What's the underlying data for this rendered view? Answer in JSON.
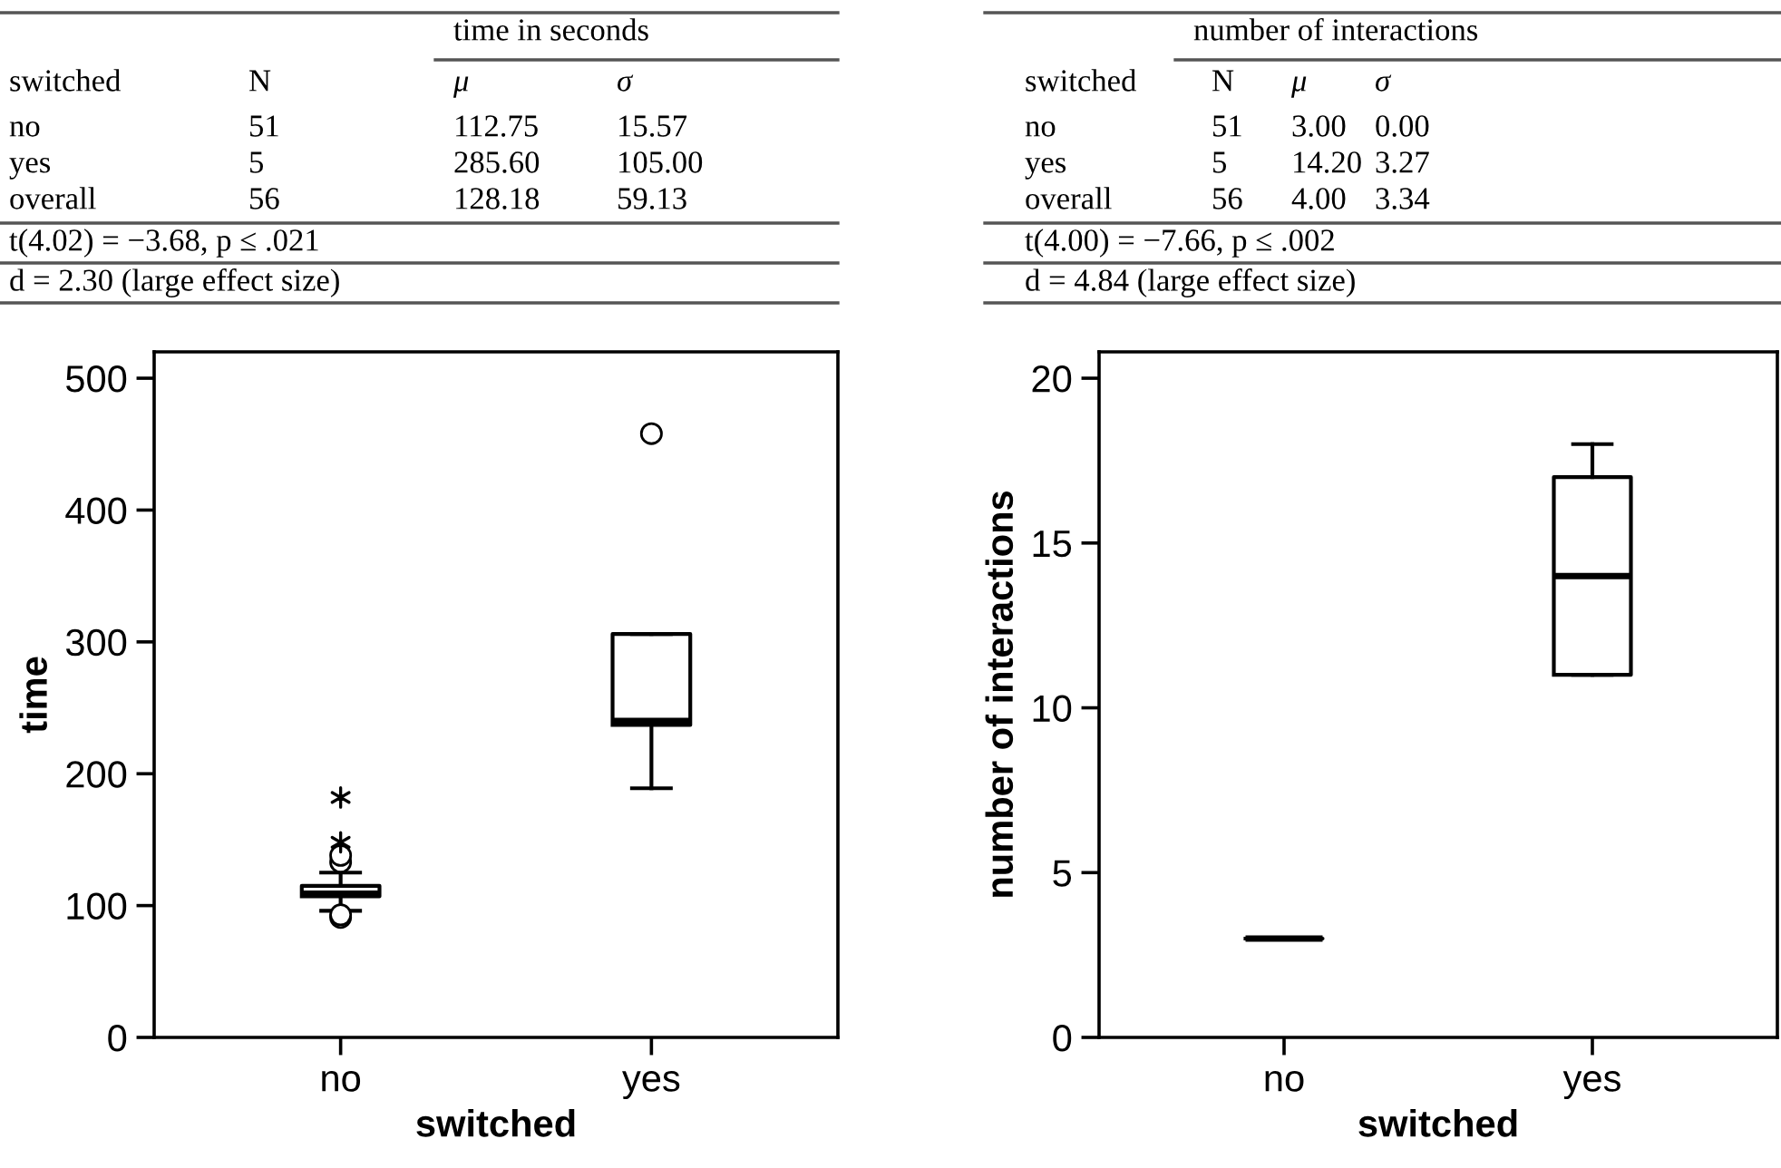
{
  "chart_data": [
    {
      "type": "box",
      "categories": [
        "no",
        "yes"
      ],
      "xlabel": "switched",
      "ylabel": "time",
      "ylim": [
        0,
        520
      ],
      "yticks": [
        0,
        100,
        200,
        300,
        400,
        500
      ],
      "grid": false,
      "boxes": [
        {
          "low": 96,
          "q1": 107,
          "median": 109,
          "q3": 115,
          "high": 125,
          "outliers": [
            91,
            93,
            133,
            138
          ]
        },
        {
          "low": 189,
          "q1": 237,
          "median": 240,
          "q3": 306,
          "high": 306,
          "outliers": [
            458
          ]
        }
      ],
      "series": [
        {
          "type": "scatter",
          "x": [
            "no",
            "no"
          ],
          "values": [
            148,
            182
          ],
          "marker": "cross",
          "color": "#000000"
        }
      ],
      "annotations": [
        "time in seconds",
        "switched",
        "N",
        "μ",
        "σ",
        "no",
        "51",
        "112.75",
        "15.57",
        "yes",
        "5",
        "285.60",
        "105.00",
        "overall",
        "56",
        "128.18",
        "59.13",
        "t(4.02) = −3.68, p ≤ .021",
        "d = 2.30 (large effect size)"
      ]
    },
    {
      "type": "box",
      "categories": [
        "no",
        "yes"
      ],
      "xlabel": "switched",
      "ylabel": "number of interactions",
      "ylim": [
        0,
        20.8
      ],
      "yticks": [
        0,
        5,
        10,
        15,
        20
      ],
      "grid": false,
      "boxes": [
        {
          "low": 3,
          "q1": 3,
          "median": 3,
          "q3": 3,
          "high": 3
        },
        {
          "low": 11,
          "q1": 11,
          "median": 14,
          "q3": 17,
          "high": 18
        }
      ],
      "annotations": [
        "number of interactions",
        "switched",
        "N",
        "μ",
        "σ",
        "no",
        "51",
        "3.00",
        "0.00",
        "yes",
        "5",
        "14.20",
        "3.27",
        "overall",
        "56",
        "4.00",
        "3.34",
        "t(4.00) = −7.66, p ≤ .002",
        "d = 4.84 (large effect size)"
      ]
    }
  ]
}
